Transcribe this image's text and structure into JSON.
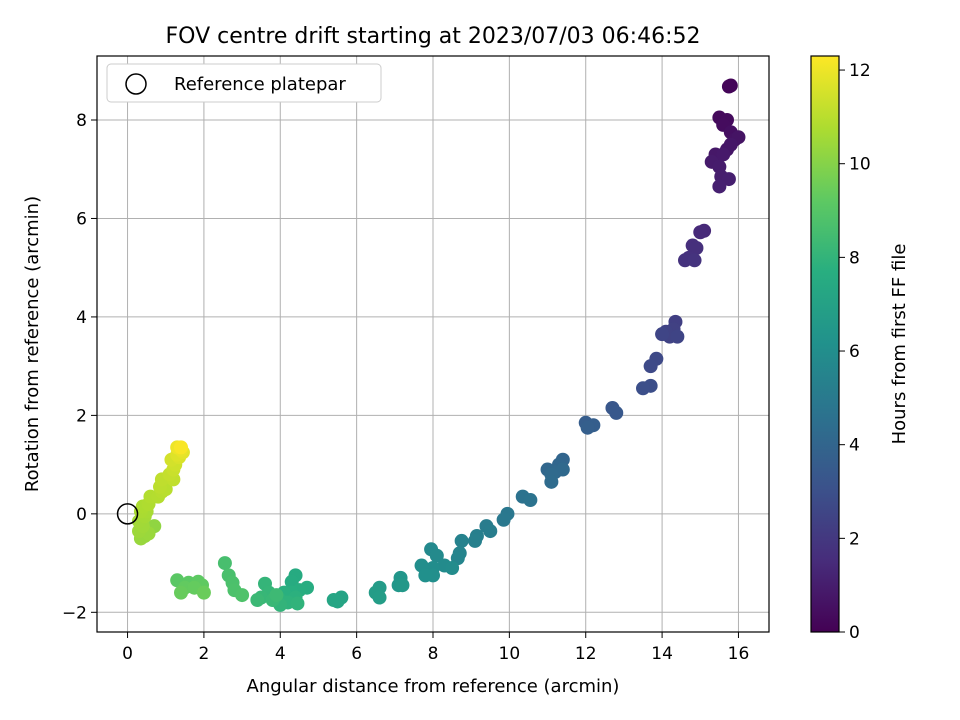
{
  "chart_data": {
    "type": "scatter",
    "title": "FOV centre drift starting at 2023/07/03 06:46:52",
    "xlabel": "Angular distance from reference (arcmin)",
    "ylabel": "Rotation from reference (arcmin)",
    "xlim": [
      -0.8,
      16.8
    ],
    "ylim": [
      -2.4,
      9.3
    ],
    "xticks": [
      0,
      2,
      4,
      6,
      8,
      10,
      12,
      14,
      16
    ],
    "yticks": [
      -2,
      0,
      2,
      4,
      6,
      8
    ],
    "grid": true,
    "legend": {
      "position": "top-left",
      "entries": [
        {
          "label": "Reference platepar",
          "marker": "open-circle"
        }
      ]
    },
    "reference_point": {
      "x": 0,
      "y": 0
    },
    "colorbar": {
      "label": "Hours from first FF file",
      "range": [
        0,
        12.3
      ],
      "ticks": [
        0,
        2,
        4,
        6,
        8,
        10,
        12
      ],
      "colormap": "viridis"
    },
    "points": [
      {
        "x": 15.8,
        "y": 8.7,
        "c": 0.1
      },
      {
        "x": 15.75,
        "y": 8.68,
        "c": 0.15
      },
      {
        "x": 15.5,
        "y": 8.05,
        "c": 0.3
      },
      {
        "x": 15.7,
        "y": 8.0,
        "c": 0.35
      },
      {
        "x": 15.6,
        "y": 7.9,
        "c": 0.4
      },
      {
        "x": 15.8,
        "y": 7.75,
        "c": 0.5
      },
      {
        "x": 15.9,
        "y": 7.6,
        "c": 0.6
      },
      {
        "x": 16.0,
        "y": 7.65,
        "c": 0.65
      },
      {
        "x": 15.7,
        "y": 7.4,
        "c": 0.7
      },
      {
        "x": 15.8,
        "y": 7.5,
        "c": 0.75
      },
      {
        "x": 15.4,
        "y": 7.3,
        "c": 0.8
      },
      {
        "x": 15.6,
        "y": 7.3,
        "c": 0.85
      },
      {
        "x": 15.3,
        "y": 7.15,
        "c": 0.9
      },
      {
        "x": 15.5,
        "y": 7.05,
        "c": 0.95
      },
      {
        "x": 15.55,
        "y": 6.85,
        "c": 1.0
      },
      {
        "x": 15.75,
        "y": 6.8,
        "c": 1.05
      },
      {
        "x": 15.5,
        "y": 6.65,
        "c": 1.1
      },
      {
        "x": 15.1,
        "y": 5.75,
        "c": 1.4
      },
      {
        "x": 15.0,
        "y": 5.72,
        "c": 1.45
      },
      {
        "x": 14.8,
        "y": 5.45,
        "c": 1.6
      },
      {
        "x": 14.9,
        "y": 5.4,
        "c": 1.65
      },
      {
        "x": 14.7,
        "y": 5.2,
        "c": 1.7
      },
      {
        "x": 14.6,
        "y": 5.15,
        "c": 1.75
      },
      {
        "x": 14.85,
        "y": 5.15,
        "c": 1.8
      },
      {
        "x": 14.35,
        "y": 3.9,
        "c": 2.3
      },
      {
        "x": 14.3,
        "y": 3.75,
        "c": 2.35
      },
      {
        "x": 14.1,
        "y": 3.7,
        "c": 2.4
      },
      {
        "x": 14.2,
        "y": 3.6,
        "c": 2.45
      },
      {
        "x": 14.4,
        "y": 3.6,
        "c": 2.5
      },
      {
        "x": 14.0,
        "y": 3.65,
        "c": 2.55
      },
      {
        "x": 13.85,
        "y": 3.15,
        "c": 2.7
      },
      {
        "x": 13.7,
        "y": 3.0,
        "c": 2.75
      },
      {
        "x": 13.7,
        "y": 2.6,
        "c": 2.9
      },
      {
        "x": 13.5,
        "y": 2.55,
        "c": 2.95
      },
      {
        "x": 12.7,
        "y": 2.15,
        "c": 3.3
      },
      {
        "x": 12.8,
        "y": 2.05,
        "c": 3.35
      },
      {
        "x": 12.0,
        "y": 1.85,
        "c": 3.6
      },
      {
        "x": 12.2,
        "y": 1.8,
        "c": 3.65
      },
      {
        "x": 12.05,
        "y": 1.75,
        "c": 3.7
      },
      {
        "x": 11.4,
        "y": 1.1,
        "c": 4.0
      },
      {
        "x": 11.3,
        "y": 1.0,
        "c": 4.05
      },
      {
        "x": 11.0,
        "y": 0.9,
        "c": 4.1
      },
      {
        "x": 11.2,
        "y": 0.85,
        "c": 4.15
      },
      {
        "x": 11.4,
        "y": 0.9,
        "c": 4.2
      },
      {
        "x": 11.1,
        "y": 0.8,
        "c": 4.25
      },
      {
        "x": 11.1,
        "y": 0.65,
        "c": 4.3
      },
      {
        "x": 10.35,
        "y": 0.35,
        "c": 4.6
      },
      {
        "x": 10.55,
        "y": 0.28,
        "c": 4.65
      },
      {
        "x": 9.95,
        "y": 0.0,
        "c": 4.85
      },
      {
        "x": 9.85,
        "y": -0.12,
        "c": 4.9
      },
      {
        "x": 9.4,
        "y": -0.25,
        "c": 5.1
      },
      {
        "x": 9.5,
        "y": -0.35,
        "c": 5.15
      },
      {
        "x": 9.15,
        "y": -0.45,
        "c": 5.25
      },
      {
        "x": 9.1,
        "y": -0.55,
        "c": 5.3
      },
      {
        "x": 8.75,
        "y": -0.55,
        "c": 5.4
      },
      {
        "x": 8.7,
        "y": -0.8,
        "c": 5.5
      },
      {
        "x": 8.65,
        "y": -0.9,
        "c": 5.55
      },
      {
        "x": 7.95,
        "y": -0.72,
        "c": 5.75
      },
      {
        "x": 8.1,
        "y": -0.85,
        "c": 5.8
      },
      {
        "x": 8.3,
        "y": -1.05,
        "c": 5.85
      },
      {
        "x": 8.5,
        "y": -1.1,
        "c": 5.9
      },
      {
        "x": 8.0,
        "y": -1.1,
        "c": 5.95
      },
      {
        "x": 7.7,
        "y": -1.05,
        "c": 6.0
      },
      {
        "x": 8.0,
        "y": -1.25,
        "c": 6.05
      },
      {
        "x": 7.8,
        "y": -1.25,
        "c": 6.1
      },
      {
        "x": 7.15,
        "y": -1.3,
        "c": 6.4
      },
      {
        "x": 7.1,
        "y": -1.45,
        "c": 6.45
      },
      {
        "x": 7.2,
        "y": -1.45,
        "c": 6.5
      },
      {
        "x": 6.6,
        "y": -1.5,
        "c": 6.7
      },
      {
        "x": 6.5,
        "y": -1.6,
        "c": 6.75
      },
      {
        "x": 6.6,
        "y": -1.7,
        "c": 6.8
      },
      {
        "x": 5.6,
        "y": -1.7,
        "c": 7.1
      },
      {
        "x": 5.5,
        "y": -1.78,
        "c": 7.15
      },
      {
        "x": 5.4,
        "y": -1.75,
        "c": 7.2
      },
      {
        "x": 4.4,
        "y": -1.25,
        "c": 7.5
      },
      {
        "x": 4.3,
        "y": -1.38,
        "c": 7.55
      },
      {
        "x": 4.7,
        "y": -1.5,
        "c": 7.6
      },
      {
        "x": 4.5,
        "y": -1.55,
        "c": 7.65
      },
      {
        "x": 4.3,
        "y": -1.6,
        "c": 7.7
      },
      {
        "x": 4.1,
        "y": -1.6,
        "c": 7.75
      },
      {
        "x": 4.4,
        "y": -1.7,
        "c": 7.8
      },
      {
        "x": 4.0,
        "y": -1.75,
        "c": 7.85
      },
      {
        "x": 4.2,
        "y": -1.8,
        "c": 7.9
      },
      {
        "x": 4.45,
        "y": -1.82,
        "c": 7.95
      },
      {
        "x": 4.0,
        "y": -1.85,
        "c": 8.0
      },
      {
        "x": 3.6,
        "y": -1.42,
        "c": 8.05
      },
      {
        "x": 3.7,
        "y": -1.6,
        "c": 8.1
      },
      {
        "x": 3.5,
        "y": -1.7,
        "c": 8.15
      },
      {
        "x": 3.8,
        "y": -1.75,
        "c": 8.2
      },
      {
        "x": 3.4,
        "y": -1.75,
        "c": 8.25
      },
      {
        "x": 3.9,
        "y": -1.65,
        "c": 8.3
      },
      {
        "x": 2.55,
        "y": -1.0,
        "c": 8.6
      },
      {
        "x": 2.65,
        "y": -1.25,
        "c": 8.65
      },
      {
        "x": 2.75,
        "y": -1.4,
        "c": 8.7
      },
      {
        "x": 2.8,
        "y": -1.55,
        "c": 8.75
      },
      {
        "x": 3.0,
        "y": -1.65,
        "c": 8.8
      },
      {
        "x": 1.3,
        "y": -1.35,
        "c": 9.1
      },
      {
        "x": 1.6,
        "y": -1.4,
        "c": 9.15
      },
      {
        "x": 1.85,
        "y": -1.38,
        "c": 9.2
      },
      {
        "x": 1.95,
        "y": -1.45,
        "c": 9.25
      },
      {
        "x": 1.5,
        "y": -1.5,
        "c": 9.3
      },
      {
        "x": 1.75,
        "y": -1.5,
        "c": 9.35
      },
      {
        "x": 1.4,
        "y": -1.6,
        "c": 9.4
      },
      {
        "x": 2.0,
        "y": -1.6,
        "c": 9.45
      },
      {
        "x": 0.7,
        "y": -0.25,
        "c": 10.2
      },
      {
        "x": 0.45,
        "y": -0.45,
        "c": 10.3
      },
      {
        "x": 0.35,
        "y": -0.5,
        "c": 10.35
      },
      {
        "x": 0.55,
        "y": -0.4,
        "c": 10.4
      },
      {
        "x": 0.3,
        "y": -0.35,
        "c": 10.45
      },
      {
        "x": 0.4,
        "y": -0.25,
        "c": 10.5
      },
      {
        "x": 0.3,
        "y": -0.15,
        "c": 10.55
      },
      {
        "x": 0.45,
        "y": -0.05,
        "c": 10.6
      },
      {
        "x": 0.5,
        "y": 0.05,
        "c": 10.65
      },
      {
        "x": 0.35,
        "y": 0.05,
        "c": 10.7
      },
      {
        "x": 0.4,
        "y": 0.15,
        "c": 10.75
      },
      {
        "x": 0.55,
        "y": 0.2,
        "c": 10.8
      },
      {
        "x": 0.6,
        "y": 0.35,
        "c": 10.85
      },
      {
        "x": 0.8,
        "y": 0.35,
        "c": 10.9
      },
      {
        "x": 0.9,
        "y": 0.45,
        "c": 10.95
      },
      {
        "x": 1.0,
        "y": 0.5,
        "c": 11.0
      },
      {
        "x": 0.85,
        "y": 0.55,
        "c": 11.05
      },
      {
        "x": 0.9,
        "y": 0.7,
        "c": 11.1
      },
      {
        "x": 1.2,
        "y": 0.7,
        "c": 11.15
      },
      {
        "x": 1.1,
        "y": 0.8,
        "c": 11.2
      },
      {
        "x": 1.2,
        "y": 0.9,
        "c": 11.3
      },
      {
        "x": 1.25,
        "y": 1.0,
        "c": 11.4
      },
      {
        "x": 1.15,
        "y": 1.1,
        "c": 11.5
      },
      {
        "x": 1.35,
        "y": 1.15,
        "c": 11.6
      },
      {
        "x": 1.3,
        "y": 1.2,
        "c": 11.7
      },
      {
        "x": 1.45,
        "y": 1.25,
        "c": 11.8
      },
      {
        "x": 1.4,
        "y": 1.3,
        "c": 11.9
      },
      {
        "x": 1.3,
        "y": 1.35,
        "c": 12.0
      },
      {
        "x": 1.4,
        "y": 1.35,
        "c": 12.2
      }
    ]
  }
}
